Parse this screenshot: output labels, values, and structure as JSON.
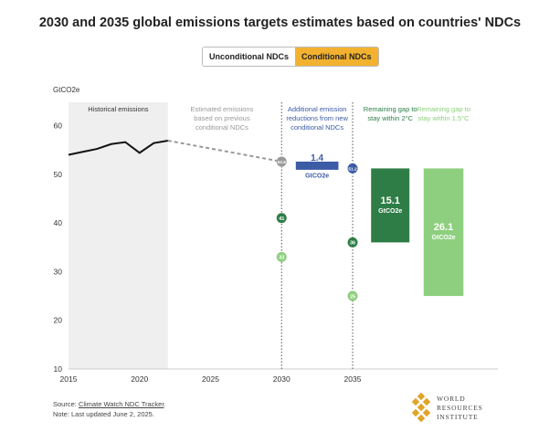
{
  "title": "2030 and 2035 global emissions targets estimates based on countries' NDCs",
  "toggle": {
    "option_unconditional": "Unconditional NDCs",
    "option_conditional": "Conditional NDCs",
    "selected": "Conditional NDCs"
  },
  "footer": {
    "source_prefix": "Source: ",
    "source_link": "Climate Watch NDC Tracker",
    "source_suffix": ".",
    "note": "Note: Last updated June 2, 2025."
  },
  "logo": {
    "line1": "WORLD",
    "line2": "RESOURCES",
    "line3": "INSTITUTE"
  },
  "colors": {
    "historical": "#111111",
    "projection": "#999999",
    "reduction_box": "#3b5ba5",
    "gap_2c": "#2e7d46",
    "gap_15c": "#8dcf7e",
    "shade": "#efefef",
    "toggle_active": "#f2b230"
  },
  "chart_data": {
    "type": "line",
    "ylabel": "GtCO2e",
    "ylim": [
      10,
      63
    ],
    "xlim": [
      2015,
      2041
    ],
    "xticks": [
      "2015",
      "2020",
      "2025",
      "2030",
      "2035"
    ],
    "yticks": [
      "10",
      "20",
      "30",
      "40",
      "50",
      "60"
    ],
    "historical": {
      "label": "Historical emissions",
      "x": [
        2015,
        2016,
        2017,
        2018,
        2019,
        2020,
        2021,
        2022
      ],
      "y": [
        54.0,
        54.6,
        55.2,
        56.2,
        56.6,
        54.4,
        56.4,
        56.9
      ]
    },
    "projection": {
      "label": "Estimated emissions based on previous conditional NDCs",
      "x": [
        2022,
        2030
      ],
      "y": [
        56.9,
        52.6
      ]
    },
    "points": [
      {
        "x": 2030,
        "y": 52.6,
        "label": "52.6",
        "color": "#999999"
      },
      {
        "x": 2030,
        "y": 41,
        "label": "41",
        "color": "#2e7d46"
      },
      {
        "x": 2030,
        "y": 33,
        "label": "33",
        "color": "#8dcf7e"
      },
      {
        "x": 2035,
        "y": 51.2,
        "label": "51.2",
        "color": "#3b5ba5"
      },
      {
        "x": 2035,
        "y": 36,
        "label": "36",
        "color": "#2e7d46"
      },
      {
        "x": 2035,
        "y": 25,
        "label": "25",
        "color": "#8dcf7e"
      }
    ],
    "annotations": [
      {
        "text": "Additional emission reductions from new conditional NDCs",
        "value": "1.4",
        "unit": "GtCO2e",
        "from": 52.6,
        "to": 51.2
      },
      {
        "text": "Remaining gap to stay within 2°C",
        "value": "15.1",
        "unit": "GtCO2e",
        "from": 51.2,
        "to": 36
      },
      {
        "text": "Remaining gap to stay within 1.5°C",
        "value": "26.1",
        "unit": "GtCO2e",
        "from": 51.2,
        "to": 25
      }
    ]
  }
}
